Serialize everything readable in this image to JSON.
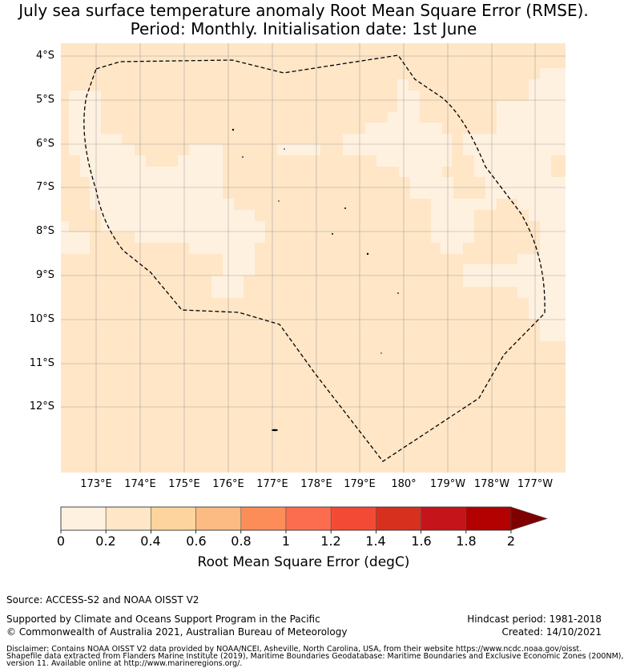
{
  "title": {
    "line1": "July sea surface temperature anomaly Root Mean Square Error (RMSE).",
    "line2": "Period: Monthly. Initialisation date: 1st June"
  },
  "map": {
    "ocean_color": "#fee6c7",
    "low_color": "#fff1e0",
    "boundary_style": "dashed",
    "gridlines": true,
    "lat_labels": [
      "4°S",
      "5°S",
      "6°S",
      "7°S",
      "8°S",
      "9°S",
      "10°S",
      "11°S",
      "12°S"
    ],
    "lon_labels": [
      "173°E",
      "174°E",
      "175°E",
      "176°E",
      "177°E",
      "178°E",
      "179°E",
      "180°",
      "179°W",
      "178°W",
      "177°W"
    ]
  },
  "colorbar": {
    "ticks": [
      "0",
      "0.2",
      "0.4",
      "0.6",
      "0.8",
      "1",
      "1.2",
      "1.4",
      "1.6",
      "1.8",
      "2"
    ],
    "colors": [
      "#fff1e0",
      "#fee6c7",
      "#fdd49e",
      "#fdbb84",
      "#fc8d59",
      "#fc6d4f",
      "#f34a36",
      "#d7301f",
      "#c5141a",
      "#b30000"
    ],
    "extend_color": "#7f0000",
    "label": "Root Mean Square Error (degC)"
  },
  "footer": {
    "source": "Source: ACCESS-S2 and NOAA OISST V2",
    "supported": "Supported by Climate and Oceans Support Program in the Pacific",
    "copyright": "© Commonwealth of Australia 2021, Australian Bureau of Meteorology",
    "hindcast": "Hindcast period: 1981-2018",
    "created": "Created: 14/10/2021",
    "disclaimer1": "Disclaimer: Contains NOAA OISST V2 data provided by NOAA/NCEI, Asheville, North Carolina, USA, from their website https://www.ncdc.noaa.gov/oisst.",
    "disclaimer2": "Shapefile data extracted from Flanders Marine Institute (2019), Maritime Boundaries Geodatabase: Maritime Boundaries and Exclusive Economic Zones (200NM),",
    "disclaimer3": "version 11. Available online at http://www.marineregions.org/."
  }
}
